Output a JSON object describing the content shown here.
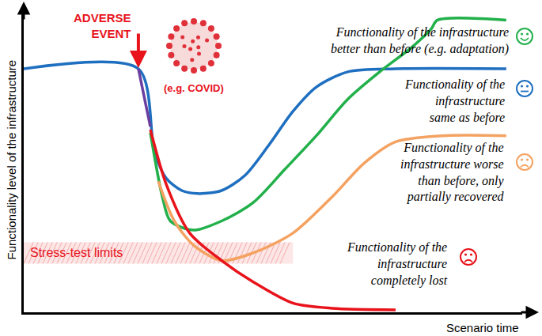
{
  "chart_data": {
    "type": "line",
    "x_label": "Scenario time",
    "y_label": "Functionality level of the infrastructure",
    "xlim": [
      0,
      100
    ],
    "ylim": [
      0,
      100
    ],
    "xticks": [],
    "yticks": [],
    "tick_labels": false,
    "grid": false,
    "event": {
      "label": "ADVERSE\nEVENT",
      "example": "(e.g. COVID)",
      "x": 23,
      "y": 80
    },
    "stress_test": {
      "label": "Stress-test limits",
      "x": [
        0,
        54
      ],
      "y": [
        16,
        23
      ]
    },
    "series": [
      {
        "name": "Functionality of the\ninfrastructure\nsame as before",
        "color": "#1f6fc0",
        "x": [
          0,
          23,
          26.2,
          28.6,
          31.7,
          34.9,
          39.7,
          44.4,
          49.2,
          54,
          58.7,
          65,
          74.6,
          96.8
        ],
        "values": [
          80,
          80,
          53,
          44,
          40,
          39,
          40,
          45,
          55,
          66,
          74,
          79,
          80,
          80
        ]
      },
      {
        "name": "Functionality of the infrastructure\nbetter than before (e.g. adaptation)",
        "color": "#22b04b",
        "x": [
          25.4,
          27.8,
          29.4,
          34.1,
          39.7,
          46,
          52.4,
          58.7,
          65,
          71.4,
          77.8,
          81.7,
          83,
          96.8
        ],
        "values": [
          59,
          38,
          30,
          27,
          30,
          36,
          47,
          58,
          70,
          79,
          87,
          93,
          96,
          96
        ]
      },
      {
        "name": "Functionality of the\ninfrastructure worse\nthan before, only\npartially recovered",
        "color": "#f4a261",
        "x": [
          27,
          30.2,
          34.1,
          39.7,
          46,
          54,
          61.9,
          68.3,
          74.6,
          84.1,
          96.8
        ],
        "values": [
          43,
          30,
          22,
          17,
          19.5,
          26,
          38,
          49,
          56,
          58,
          58
        ]
      },
      {
        "name": "Functionality of the\ninfrastructure\ncompletely lost",
        "color": "#e8131b",
        "x": [
          25.4,
          28.6,
          33.3,
          39.7,
          46,
          54,
          61.9,
          74.6
        ],
        "values": [
          60,
          42,
          26,
          17,
          10,
          3,
          1.3,
          0.8
        ]
      },
      {
        "color": "#6b3fa0",
        "x": [
          23,
          25.4
        ],
        "values": [
          80,
          61
        ]
      }
    ]
  }
}
